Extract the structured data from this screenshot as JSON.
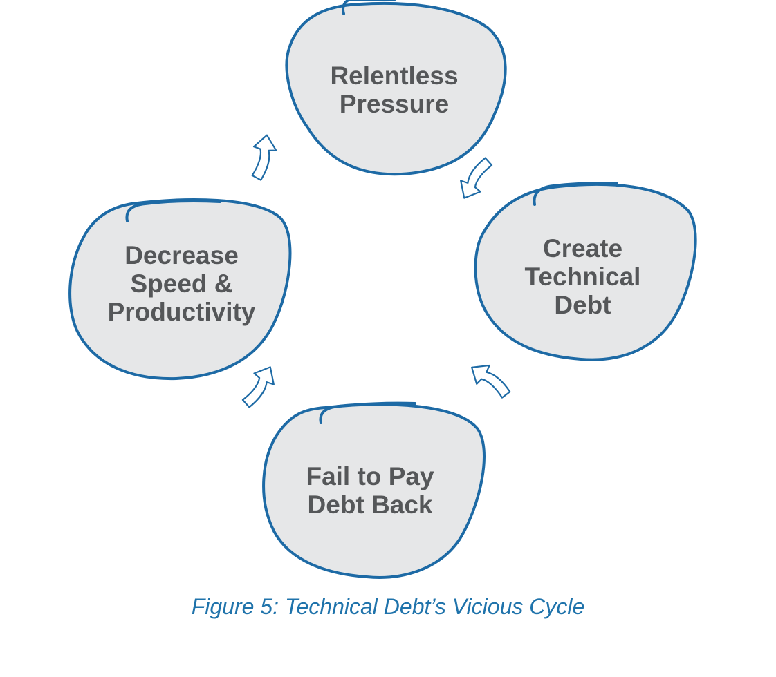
{
  "diagram": {
    "type": "cycle",
    "nodes": [
      {
        "id": "relentless-pressure",
        "label": "Relentless\nPressure"
      },
      {
        "id": "create-technical-debt",
        "label": "Create\nTechnical\nDebt"
      },
      {
        "id": "fail-to-pay-debt-back",
        "label": "Fail to Pay\nDebt Back"
      },
      {
        "id": "decrease-speed-productivity",
        "label": "Decrease\nSpeed &\nProductivity"
      }
    ],
    "edges": [
      {
        "from": "relentless-pressure",
        "to": "create-technical-debt"
      },
      {
        "from": "create-technical-debt",
        "to": "fail-to-pay-debt-back"
      },
      {
        "from": "fail-to-pay-debt-back",
        "to": "decrease-speed-productivity"
      },
      {
        "from": "decrease-speed-productivity",
        "to": "relentless-pressure"
      }
    ]
  },
  "caption": "Figure 5: Technical Debt’s Vicious Cycle",
  "colors": {
    "node_fill": "#e6e7e8",
    "node_stroke": "#1d6aa5",
    "label_text": "#555759",
    "caption_text": "#1f73ab",
    "arrow_stroke": "#1d6aa5"
  }
}
